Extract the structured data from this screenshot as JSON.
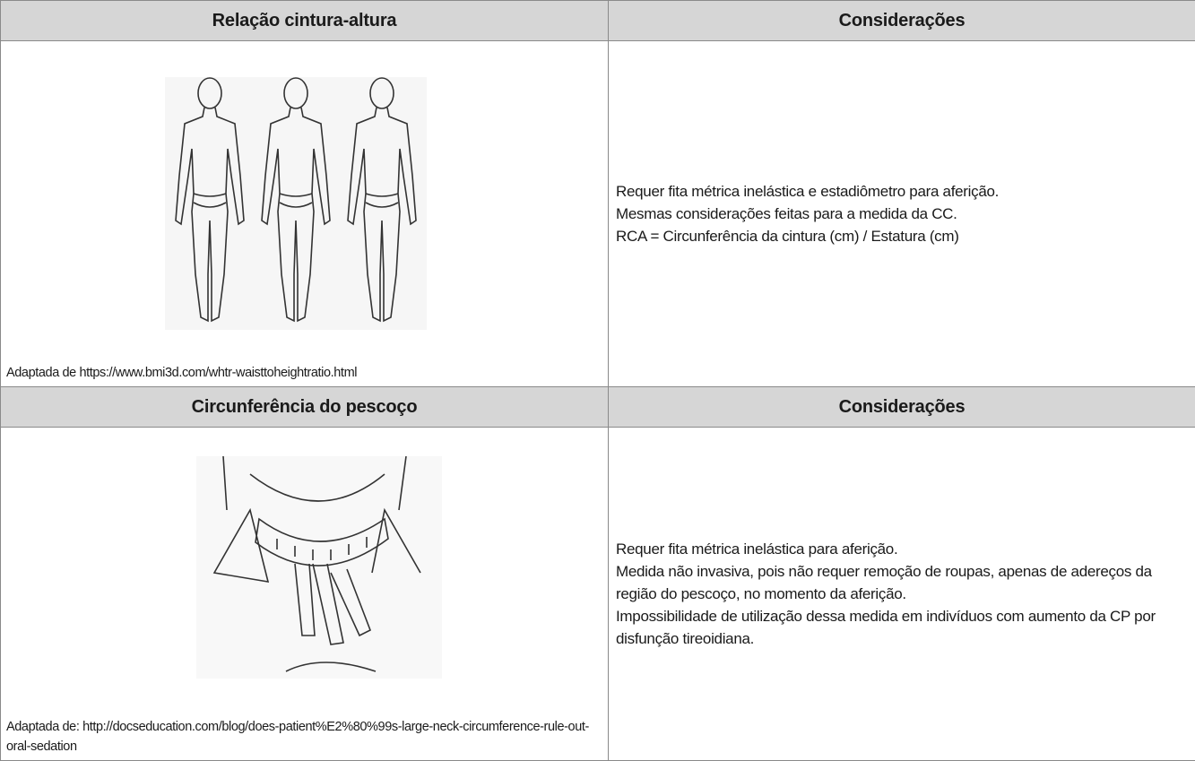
{
  "sections": [
    {
      "headers": [
        "Relação cintura-altura",
        "Considerações"
      ],
      "caption": "Adaptada de https://www.bmi3d.com/whtr-waisttoheightratio.html",
      "notes": [
        "Requer fita métrica inelástica e estadiômetro para aferição.",
        "Mesmas considerações feitas para a medida da CC.",
        "RCA = Circunferência da cintura (cm) / Estatura (cm)"
      ]
    },
    {
      "headers": [
        "Circunferência do pescoço",
        "Considerações"
      ],
      "caption": "Adaptada de: http://docseducation.com/blog/does-patient%E2%80%99s-large-neck-circumference-rule-out-oral-sedation",
      "notes": [
        "Requer fita métrica inelástica para aferição.",
        "Medida não invasiva, pois não requer remoção de roupas, apenas de adereços da região do pescoço, no momento da aferição.",
        "Impossibilidade de utilização dessa medida em indivíduos com aumento da CP por disfunção tireoidiana."
      ]
    }
  ]
}
